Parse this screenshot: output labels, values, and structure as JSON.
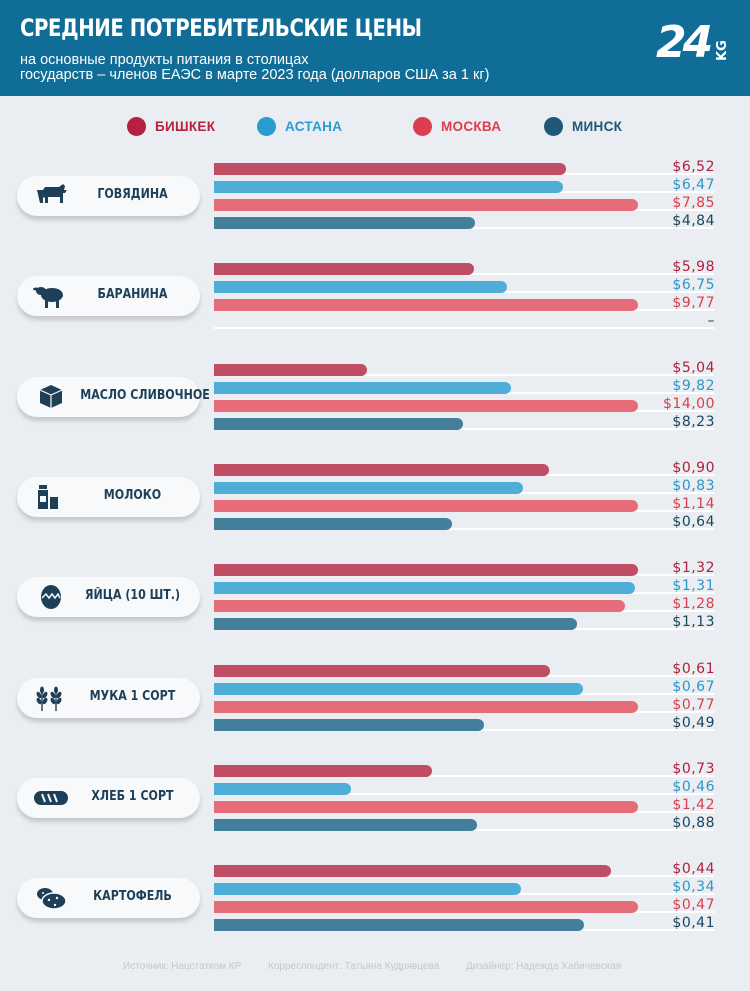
{
  "header": {
    "title": "СРЕДНИЕ ПОТРЕБИТЕЛЬСКИЕ ЦЕНЫ",
    "subtitle_line1": "на основные продукты питания в столицах",
    "subtitle_line2": "государств – членов ЕАЭС в марте 2023 года (долларов США за 1 кг)",
    "logo_text": "24",
    "logo_suffix": "KG"
  },
  "colors": {
    "header_bg": "#0f6d97",
    "bishkek": "#bf4d63",
    "astana": "#4eaed8",
    "moscow": "#e46d79",
    "minsk": "#437e9a",
    "bishkek_text": "#b1203d",
    "astana_text": "#2e97c9",
    "moscow_text": "#d9404f",
    "minsk_text": "#1b4660",
    "legend_bishkek_dot": "#b5213e",
    "legend_astana_dot": "#2b9bd0",
    "legend_moscow_dot": "#dd3e4e",
    "legend_minsk_dot": "#1f5878"
  },
  "legend": [
    "БИШКЕК",
    "АСТАНА",
    "МОСКВА",
    "МИНСК"
  ],
  "chart_data": {
    "type": "bar",
    "orientation": "horizontal",
    "title": "СРЕДНИЕ ПОТРЕБИТЕЛЬСКИЕ ЦЕНЫ",
    "unit": "долларов США за 1 кг",
    "note": "bar lengths are scaled per product group (longest bar spans the track)",
    "categories": [
      "ГОВЯДИНА",
      "БАРАНИНА",
      "МАСЛО СЛИВОЧНОЕ",
      "МОЛОКО",
      "ЯЙЦА (10 ШТ.)",
      "МУКА 1 СОРТ",
      "ХЛЕБ 1 СОРТ",
      "КАРТОФЕЛЬ"
    ],
    "icons": [
      "cow-icon",
      "sheep-icon",
      "butter-icon",
      "milk-icon",
      "egg-icon",
      "wheat-icon",
      "bread-icon",
      "potato-icon"
    ],
    "series": [
      {
        "name": "БИШКЕК",
        "values": [
          6.52,
          5.98,
          5.04,
          0.9,
          1.32,
          0.61,
          0.73,
          0.44
        ],
        "labels": [
          "$6,52",
          "$5,98",
          "$5,04",
          "$0,90",
          "$1,32",
          "$0,61",
          "$0,73",
          "$0,44"
        ]
      },
      {
        "name": "АСТАНА",
        "values": [
          6.47,
          6.75,
          9.82,
          0.83,
          1.31,
          0.67,
          0.46,
          0.34
        ],
        "labels": [
          "$6,47",
          "$6,75",
          "$9,82",
          "$0,83",
          "$1,31",
          "$0,67",
          "$0,46",
          "$0,34"
        ]
      },
      {
        "name": "МОСКВА",
        "values": [
          7.85,
          9.77,
          14.0,
          1.14,
          1.28,
          0.77,
          1.42,
          0.47
        ],
        "labels": [
          "$7,85",
          "$9,77",
          "$14,00",
          "$1,14",
          "$1,28",
          "$0,77",
          "$1,42",
          "$0,47"
        ]
      },
      {
        "name": "МИНСК",
        "values": [
          4.84,
          null,
          8.23,
          0.64,
          1.13,
          0.49,
          0.88,
          0.41
        ],
        "labels": [
          "$4,84",
          "–",
          "$8,23",
          "$0,64",
          "$1,13",
          "$0,49",
          "$0,88",
          "$0,41"
        ]
      }
    ]
  },
  "footer": {
    "source": "Источник: Нацстатком КР",
    "correspondent": "Корреспондент: Татьяна Кудрявцева",
    "designer": "Дизайнер: Надежда Хабичевская"
  }
}
